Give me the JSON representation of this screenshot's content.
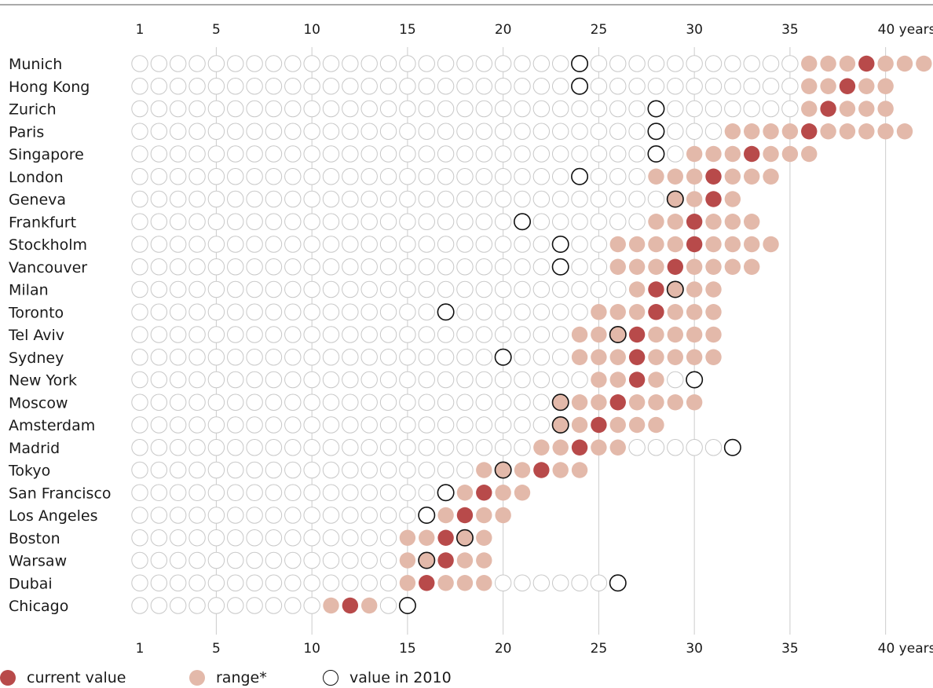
{
  "chart_data": {
    "type": "scatter",
    "title": "",
    "xlabel": "",
    "ylabel": "",
    "x_ticks": [
      1,
      5,
      10,
      15,
      20,
      25,
      30,
      35,
      40
    ],
    "x_tick_labels": [
      "1",
      "5",
      "10",
      "15",
      "20",
      "25",
      "30",
      "35",
      "40 years"
    ],
    "xlim": [
      1,
      42
    ],
    "grid": true,
    "legend_position": "bottom-left",
    "colors": {
      "current": "#b84a4a",
      "range": "#e3b9aa",
      "empty_outline": "#c8c8c8",
      "marker_2010": "#111111",
      "grid": "#cccccc",
      "rule": "#555555"
    },
    "series_labels": {
      "current": "current value",
      "range": "range*",
      "value_2010": "value in 2010"
    },
    "cities": [
      {
        "name": "Munich",
        "range": [
          36,
          42
        ],
        "current": 39,
        "value_2010": 24
      },
      {
        "name": "Hong Kong",
        "range": [
          36,
          40
        ],
        "current": 38,
        "value_2010": 24
      },
      {
        "name": "Zurich",
        "range": [
          36,
          40
        ],
        "current": 37,
        "value_2010": 28
      },
      {
        "name": "Paris",
        "range": [
          32,
          41
        ],
        "current": 36,
        "value_2010": 28
      },
      {
        "name": "Singapore",
        "range": [
          30,
          36
        ],
        "current": 33,
        "value_2010": 28
      },
      {
        "name": "London",
        "range": [
          28,
          34
        ],
        "current": 31,
        "value_2010": 24
      },
      {
        "name": "Geneva",
        "range": [
          29,
          32
        ],
        "current": 31,
        "value_2010": 29
      },
      {
        "name": "Frankfurt",
        "range": [
          28,
          33
        ],
        "current": 30,
        "value_2010": 21
      },
      {
        "name": "Stockholm",
        "range": [
          26,
          34
        ],
        "current": 30,
        "value_2010": 23
      },
      {
        "name": "Vancouver",
        "range": [
          26,
          33
        ],
        "current": 29,
        "value_2010": 23
      },
      {
        "name": "Milan",
        "range": [
          27,
          31
        ],
        "current": 28,
        "value_2010": 29
      },
      {
        "name": "Toronto",
        "range": [
          25,
          31
        ],
        "current": 28,
        "value_2010": 17
      },
      {
        "name": "Tel Aviv",
        "range": [
          24,
          31
        ],
        "current": 27,
        "value_2010": 26
      },
      {
        "name": "Sydney",
        "range": [
          24,
          31
        ],
        "current": 27,
        "value_2010": 20
      },
      {
        "name": "New York",
        "range": [
          25,
          28
        ],
        "current": 27,
        "value_2010": 30
      },
      {
        "name": "Moscow",
        "range": [
          23,
          30
        ],
        "current": 26,
        "value_2010": 23
      },
      {
        "name": "Amsterdam",
        "range": [
          23,
          28
        ],
        "current": 25,
        "value_2010": 23
      },
      {
        "name": "Madrid",
        "range": [
          22,
          26
        ],
        "current": 24,
        "value_2010": 32
      },
      {
        "name": "Tokyo",
        "range": [
          19,
          24
        ],
        "current": 22,
        "value_2010": 20
      },
      {
        "name": "San Francisco",
        "range": [
          18,
          21
        ],
        "current": 19,
        "value_2010": 17
      },
      {
        "name": "Los Angeles",
        "range": [
          17,
          20
        ],
        "current": 18,
        "value_2010": 16
      },
      {
        "name": "Boston",
        "range": [
          15,
          19
        ],
        "current": 17,
        "value_2010": 18
      },
      {
        "name": "Warsaw",
        "range": [
          15,
          19
        ],
        "current": 17,
        "value_2010": 16
      },
      {
        "name": "Dubai",
        "range": [
          15,
          19
        ],
        "current": 16,
        "value_2010": 26
      },
      {
        "name": "Chicago",
        "range": [
          11,
          13
        ],
        "current": 12,
        "value_2010": 15
      }
    ]
  }
}
